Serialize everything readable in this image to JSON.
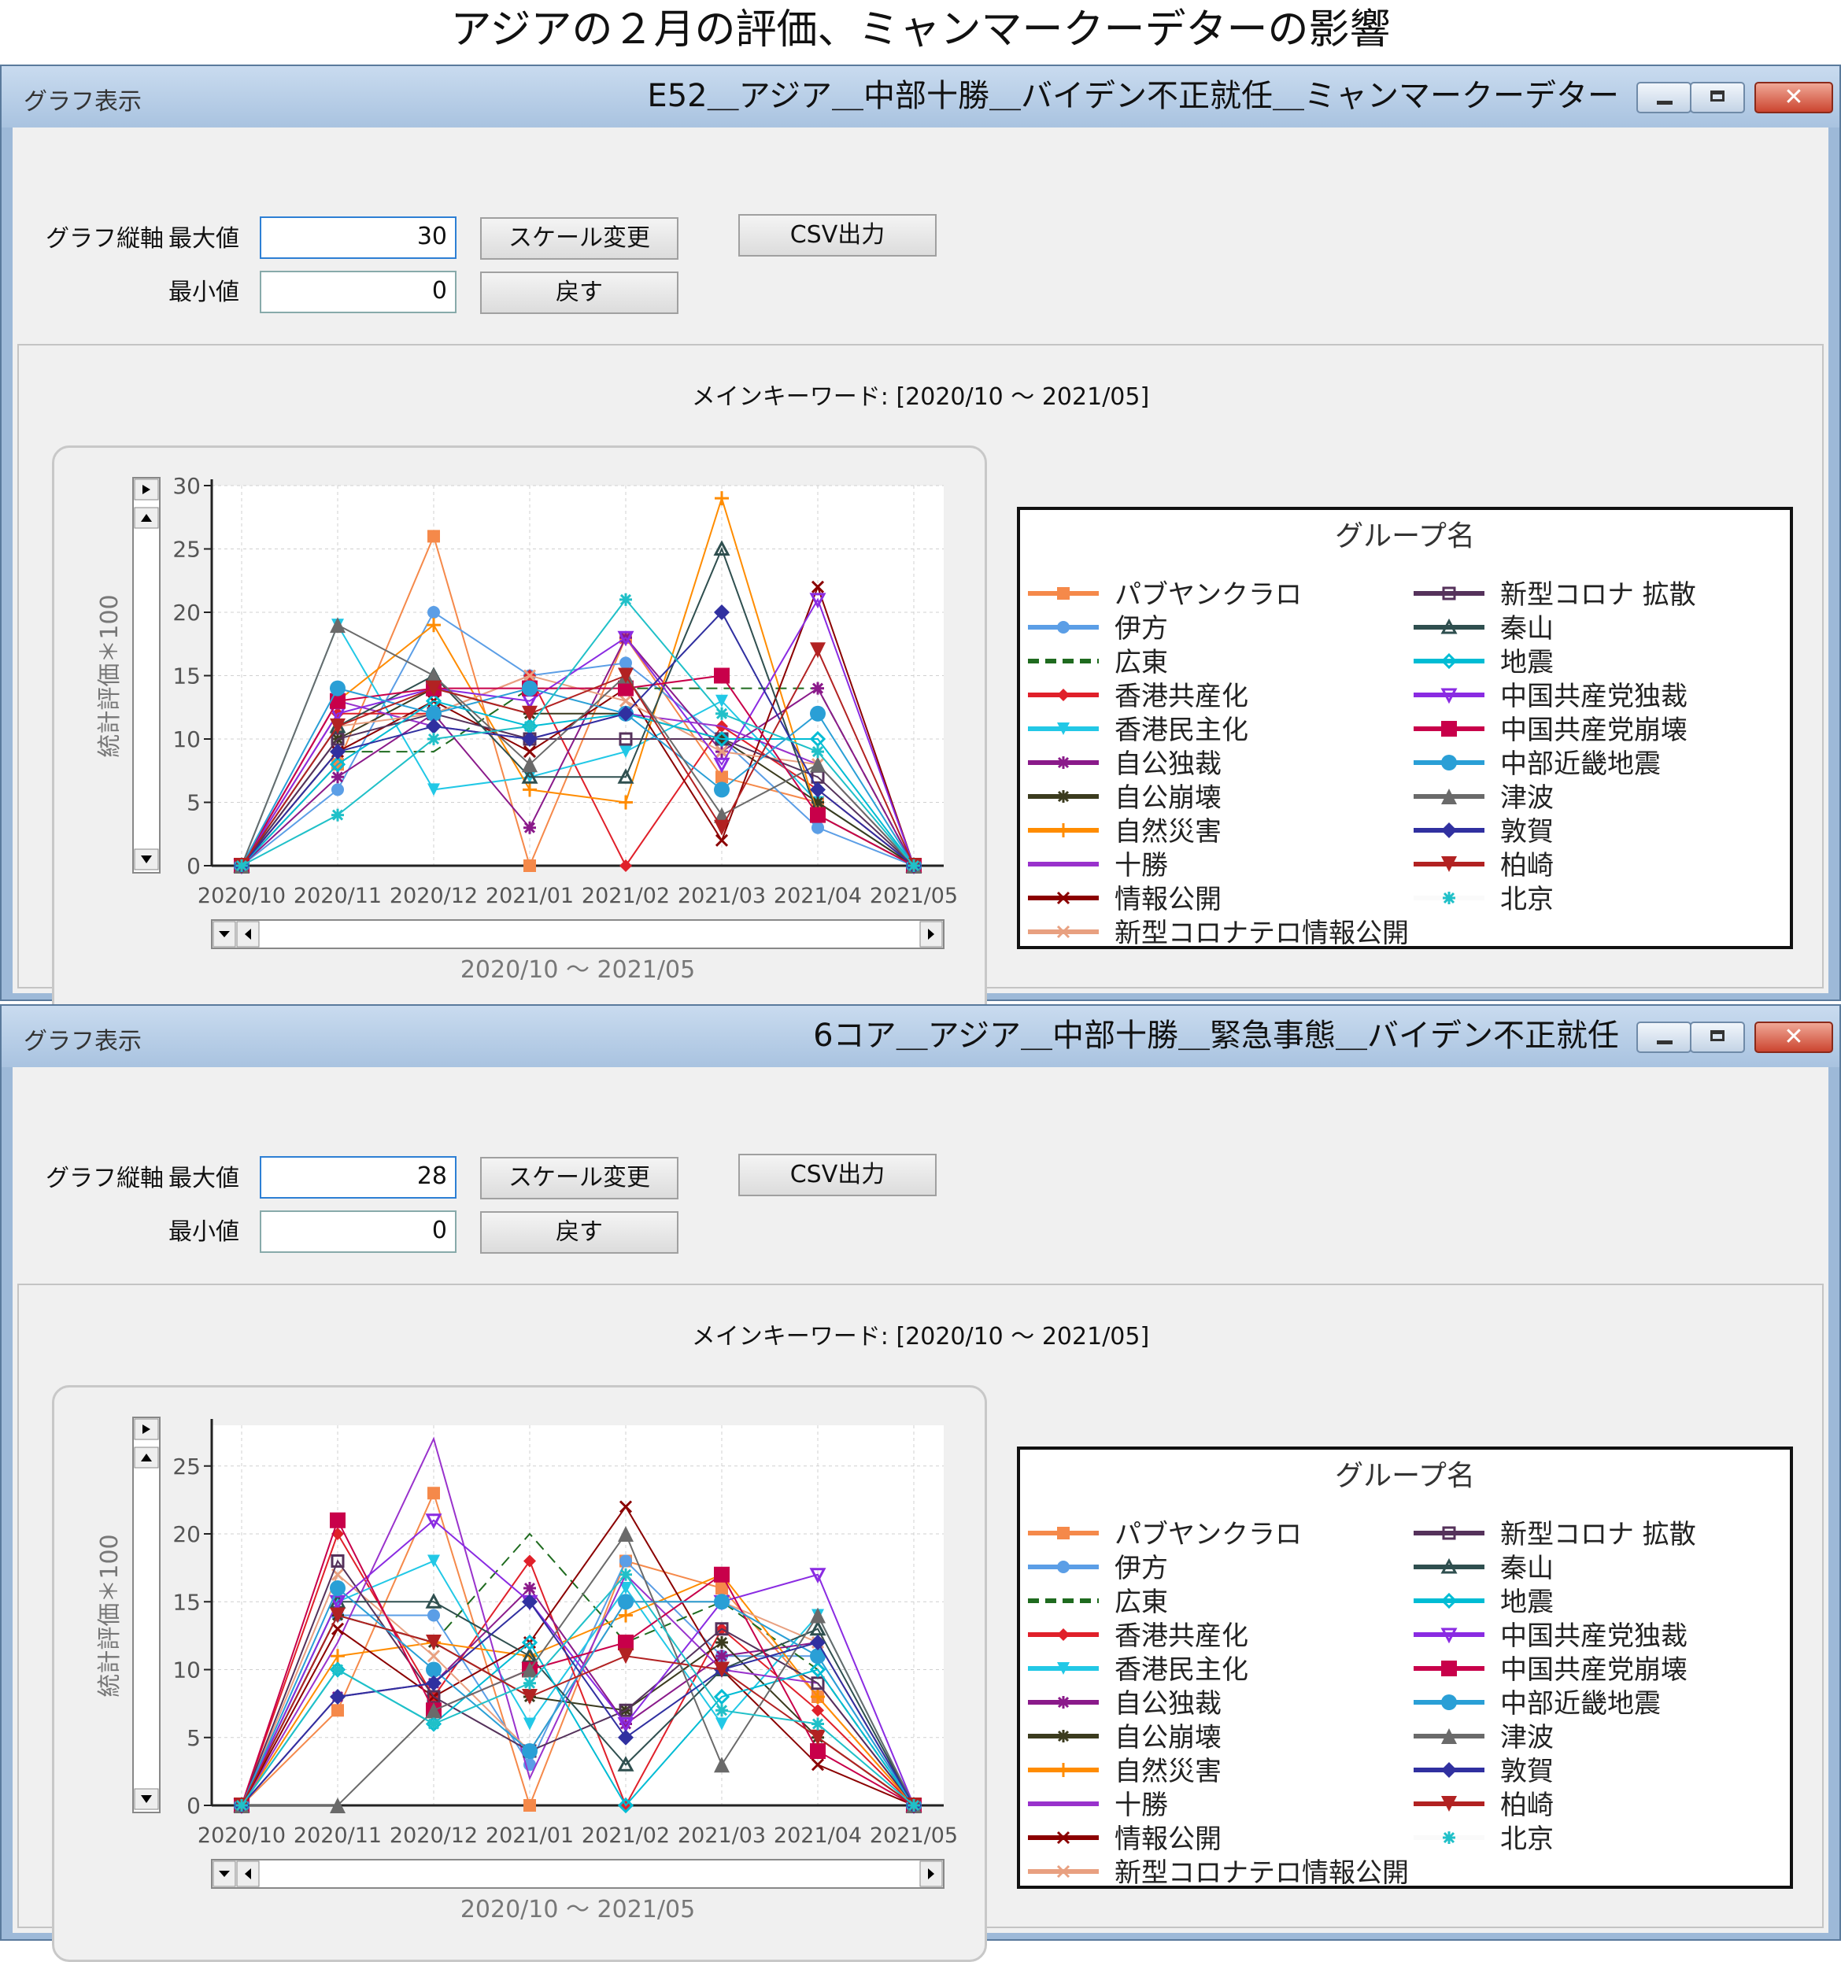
{
  "page_title": "アジアの２月の評価、ミャンマークーデターの影響",
  "series_styles": [
    {
      "name": "パブヤンクラロ",
      "color": "#f5894a",
      "marker": "square",
      "dash": ""
    },
    {
      "name": "伊方",
      "color": "#5b9ee6",
      "marker": "circle",
      "dash": ""
    },
    {
      "name": "広東",
      "color": "#1f6b1f",
      "marker": "none",
      "dash": "14,8"
    },
    {
      "name": "香港共産化",
      "color": "#e0202a",
      "marker": "diamond",
      "dash": ""
    },
    {
      "name": "香港民主化",
      "color": "#22c8e6",
      "marker": "triangle-down",
      "dash": ""
    },
    {
      "name": "自公独裁",
      "color": "#8a1a8a",
      "marker": "star",
      "dash": ""
    },
    {
      "name": "自公崩壊",
      "color": "#3b3b1e",
      "marker": "asterisk",
      "dash": ""
    },
    {
      "name": "自然災害",
      "color": "#ff8c00",
      "marker": "plus",
      "dash": ""
    },
    {
      "name": "十勝",
      "color": "#9932cc",
      "marker": "none",
      "dash": ""
    },
    {
      "name": "情報公開",
      "color": "#8b0000",
      "marker": "cross",
      "dash": ""
    },
    {
      "name": "新型コロナテロ情報公開",
      "color": "#e8a080",
      "marker": "x",
      "dash": ""
    },
    {
      "name": "新型コロナ 拡散",
      "color": "#55325b",
      "marker": "open-square",
      "dash": ""
    },
    {
      "name": "秦山",
      "color": "#2f4f4f",
      "marker": "open-triangle",
      "dash": ""
    },
    {
      "name": "地震",
      "color": "#00bcd4",
      "marker": "open-diamond",
      "dash": ""
    },
    {
      "name": "中国共産党独裁",
      "color": "#8a2be2",
      "marker": "open-triangle-down",
      "dash": ""
    },
    {
      "name": "中国共産党崩壊",
      "color": "#c8004a",
      "marker": "big-square",
      "dash": ""
    },
    {
      "name": "中部近畿地震",
      "color": "#2a9fd6",
      "marker": "big-circle",
      "dash": ""
    },
    {
      "name": "津波",
      "color": "#6a6a6a",
      "marker": "big-triangle",
      "dash": ""
    },
    {
      "name": "敦賀",
      "color": "#3030a0",
      "marker": "big-diamond",
      "dash": ""
    },
    {
      "name": "柏崎",
      "color": "#b22222",
      "marker": "big-triangle-down",
      "dash": ""
    },
    {
      "name": "北京",
      "color": "#fafafa",
      "marker": "teal-star",
      "dash": ""
    }
  ],
  "windows": [
    {
      "app_title": "グラフ表示",
      "window_title": "E52＿アジア＿中部十勝＿バイデン不正就任＿ミャンマークーデター",
      "close_glyph": "✕",
      "controls": {
        "axis_label": "グラフ縦軸",
        "max_label": "最大値",
        "min_label": "最小値",
        "max_value": "30",
        "min_value": "0",
        "scale_button": "スケール変更",
        "back_button": "戻す",
        "csv_button": "CSV出力"
      },
      "keyword_text": "メインキーワード: [2020/10 ～ 2021/05]",
      "legend_title": "グループ名",
      "chart_data": {
        "type": "line",
        "ylabel": "統計評価＊100",
        "xlabel": "2020/10 ～ 2021/05",
        "ylim": [
          0,
          30
        ],
        "yticks": [
          0,
          5,
          10,
          15,
          20,
          25,
          30
        ],
        "categories": [
          "2020/10",
          "2020/11",
          "2020/12",
          "2021/01",
          "2021/02",
          "2021/03",
          "2021/04",
          "2021/05"
        ],
        "series": [
          {
            "name": "パブヤンクラロ",
            "values": [
              0,
              8,
              26,
              0,
              18,
              7,
              5,
              0
            ]
          },
          {
            "name": "伊方",
            "values": [
              0,
              6,
              20,
              15,
              16,
              10,
              3,
              0
            ]
          },
          {
            "name": "広東",
            "values": [
              0,
              9,
              9,
              14,
              14,
              14,
              14,
              0
            ]
          },
          {
            "name": "香港共産化",
            "values": [
              0,
              12,
              12,
              15,
              0,
              11,
              6,
              0
            ]
          },
          {
            "name": "香港民主化",
            "values": [
              0,
              19,
              6,
              7,
              9,
              13,
              5,
              0
            ]
          },
          {
            "name": "自公独裁",
            "values": [
              0,
              7,
              12,
              3,
              18,
              9,
              14,
              0
            ]
          },
          {
            "name": "自公崩壊",
            "values": [
              0,
              10,
              14,
              12,
              12,
              10,
              5,
              0
            ]
          },
          {
            "name": "自然災害",
            "values": [
              0,
              13,
              19,
              6,
              5,
              29,
              4,
              0
            ]
          },
          {
            "name": "十勝",
            "values": [
              0,
              13,
              11,
              10,
              12,
              11,
              8,
              0
            ]
          },
          {
            "name": "情報公開",
            "values": [
              0,
              9,
              13,
              9,
              14,
              2,
              22,
              0
            ]
          },
          {
            "name": "新型コロナテロ情報公開",
            "values": [
              0,
              11,
              12,
              15,
              13,
              9,
              8,
              0
            ]
          },
          {
            "name": "新型コロナ 拡散",
            "values": [
              0,
              10,
              12,
              10,
              10,
              10,
              7,
              0
            ]
          },
          {
            "name": "秦山",
            "values": [
              0,
              11,
              15,
              7,
              7,
              25,
              4,
              0
            ]
          },
          {
            "name": "地震",
            "values": [
              0,
              8,
              13,
              11,
              12,
              10,
              10,
              0
            ]
          },
          {
            "name": "中国共産党独裁",
            "values": [
              0,
              12,
              14,
              13,
              18,
              8,
              21,
              0
            ]
          },
          {
            "name": "中国共産党崩壊",
            "values": [
              0,
              13,
              14,
              14,
              14,
              15,
              4,
              0
            ]
          },
          {
            "name": "中部近畿地震",
            "values": [
              0,
              14,
              12,
              14,
              12,
              6,
              12,
              0
            ]
          },
          {
            "name": "津波",
            "values": [
              0,
              19,
              15,
              8,
              15,
              4,
              8,
              0
            ]
          },
          {
            "name": "敦賀",
            "values": [
              0,
              9,
              11,
              10,
              12,
              20,
              6,
              0
            ]
          },
          {
            "name": "柏崎",
            "values": [
              0,
              11,
              14,
              12,
              15,
              3,
              17,
              0
            ]
          },
          {
            "name": "北京",
            "values": [
              0,
              4,
              10,
              11,
              21,
              12,
              9,
              0
            ]
          }
        ]
      }
    },
    {
      "app_title": "グラフ表示",
      "window_title": "6コア＿アジア＿中部十勝＿緊急事態＿バイデン不正就任",
      "close_glyph": "✕",
      "controls": {
        "axis_label": "グラフ縦軸",
        "max_label": "最大値",
        "min_label": "最小値",
        "max_value": "28",
        "min_value": "0",
        "scale_button": "スケール変更",
        "back_button": "戻す",
        "csv_button": "CSV出力"
      },
      "keyword_text": "メインキーワード: [2020/10 ～ 2021/05]",
      "legend_title": "グループ名",
      "chart_data": {
        "type": "line",
        "ylabel": "統計評価＊100",
        "xlabel": "2020/10 ～ 2021/05",
        "ylim": [
          0,
          28
        ],
        "yticks": [
          0,
          5,
          10,
          15,
          20,
          25
        ],
        "categories": [
          "2020/10",
          "2020/11",
          "2020/12",
          "2021/01",
          "2021/02",
          "2021/03",
          "2021/04",
          "2021/05"
        ],
        "series": [
          {
            "name": "パブヤンクラロ",
            "values": [
              0,
              7,
              23,
              0,
              18,
              16,
              8,
              0
            ]
          },
          {
            "name": "伊方",
            "values": [
              0,
              14,
              14,
              3,
              18,
              11,
              11,
              0
            ]
          },
          {
            "name": "広東",
            "values": [
              0,
              14,
              12,
              20,
              12,
              15,
              10,
              0
            ]
          },
          {
            "name": "香港共産化",
            "values": [
              0,
              20,
              8,
              18,
              0,
              13,
              7,
              0
            ]
          },
          {
            "name": "香港民主化",
            "values": [
              0,
              15,
              18,
              6,
              16,
              6,
              14,
              0
            ]
          },
          {
            "name": "自公独裁",
            "values": [
              0,
              8,
              9,
              16,
              6,
              11,
              12,
              0
            ]
          },
          {
            "name": "自公崩壊",
            "values": [
              0,
              14,
              12,
              8,
              7,
              12,
              5,
              0
            ]
          },
          {
            "name": "自然災害",
            "values": [
              0,
              11,
              12,
              11,
              14,
              17,
              8,
              0
            ]
          },
          {
            "name": "十勝",
            "values": [
              0,
              12,
              27,
              2,
              17,
              10,
              9,
              0
            ]
          },
          {
            "name": "情報公開",
            "values": [
              0,
              13,
              8,
              12,
              22,
              10,
              3,
              0
            ]
          },
          {
            "name": "新型コロナテロ情報公開",
            "values": [
              0,
              17,
              11,
              4,
              15,
              15,
              12,
              0
            ]
          },
          {
            "name": "新型コロナ 拡散",
            "values": [
              0,
              18,
              8,
              4,
              7,
              13,
              9,
              0
            ]
          },
          {
            "name": "秦山",
            "values": [
              0,
              15,
              15,
              11,
              3,
              10,
              13,
              0
            ]
          },
          {
            "name": "地震",
            "values": [
              0,
              10,
              6,
              12,
              0,
              8,
              10,
              0
            ]
          },
          {
            "name": "中国共産党独裁",
            "values": [
              0,
              15,
              21,
              15,
              6,
              15,
              17,
              0
            ]
          },
          {
            "name": "中国共産党崩壊",
            "values": [
              0,
              21,
              7,
              10,
              12,
              17,
              4,
              0
            ]
          },
          {
            "name": "中部近畿地震",
            "values": [
              0,
              16,
              10,
              4,
              15,
              15,
              11,
              0
            ]
          },
          {
            "name": "津波",
            "values": [
              0,
              0,
              7,
              10,
              20,
              3,
              14,
              0
            ]
          },
          {
            "name": "敦賀",
            "values": [
              0,
              8,
              9,
              15,
              5,
              10,
              12,
              0
            ]
          },
          {
            "name": "柏崎",
            "values": [
              0,
              14,
              12,
              8,
              11,
              10,
              5,
              0
            ]
          },
          {
            "name": "北京",
            "values": [
              0,
              10,
              6,
              9,
              17,
              7,
              6,
              0
            ]
          }
        ]
      }
    }
  ]
}
